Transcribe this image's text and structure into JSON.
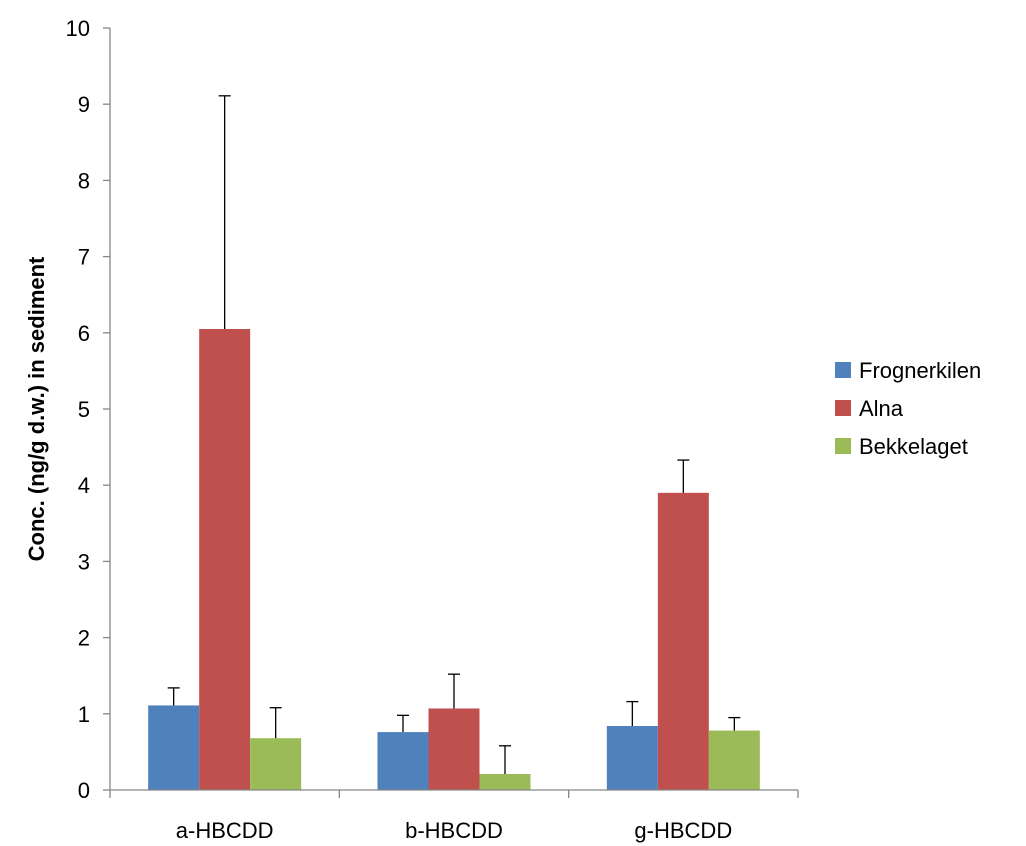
{
  "chart_data": {
    "type": "bar",
    "title": "",
    "xlabel": "",
    "ylabel": "Conc. (ng/g d.w.) in sediment",
    "ylim": [
      0,
      10
    ],
    "yticks": [
      0,
      1,
      2,
      3,
      4,
      5,
      6,
      7,
      8,
      9,
      10
    ],
    "categories": [
      "a-HBCDD",
      "b-HBCDD",
      "g-HBCDD"
    ],
    "series": [
      {
        "name": "Frognerkilen",
        "color": "#4f81bd",
        "values": [
          1.11,
          0.76,
          0.84
        ],
        "errors": [
          0.23,
          0.22,
          0.32
        ]
      },
      {
        "name": "Alna",
        "color": "#c0504d",
        "values": [
          6.05,
          1.07,
          3.9
        ],
        "errors": [
          3.06,
          0.45,
          0.43
        ]
      },
      {
        "name": "Bekkelaget",
        "color": "#9bbb59",
        "values": [
          0.68,
          0.21,
          0.78
        ],
        "errors": [
          0.4,
          0.37,
          0.17
        ]
      }
    ],
    "grid": false,
    "legend_position": "right"
  }
}
